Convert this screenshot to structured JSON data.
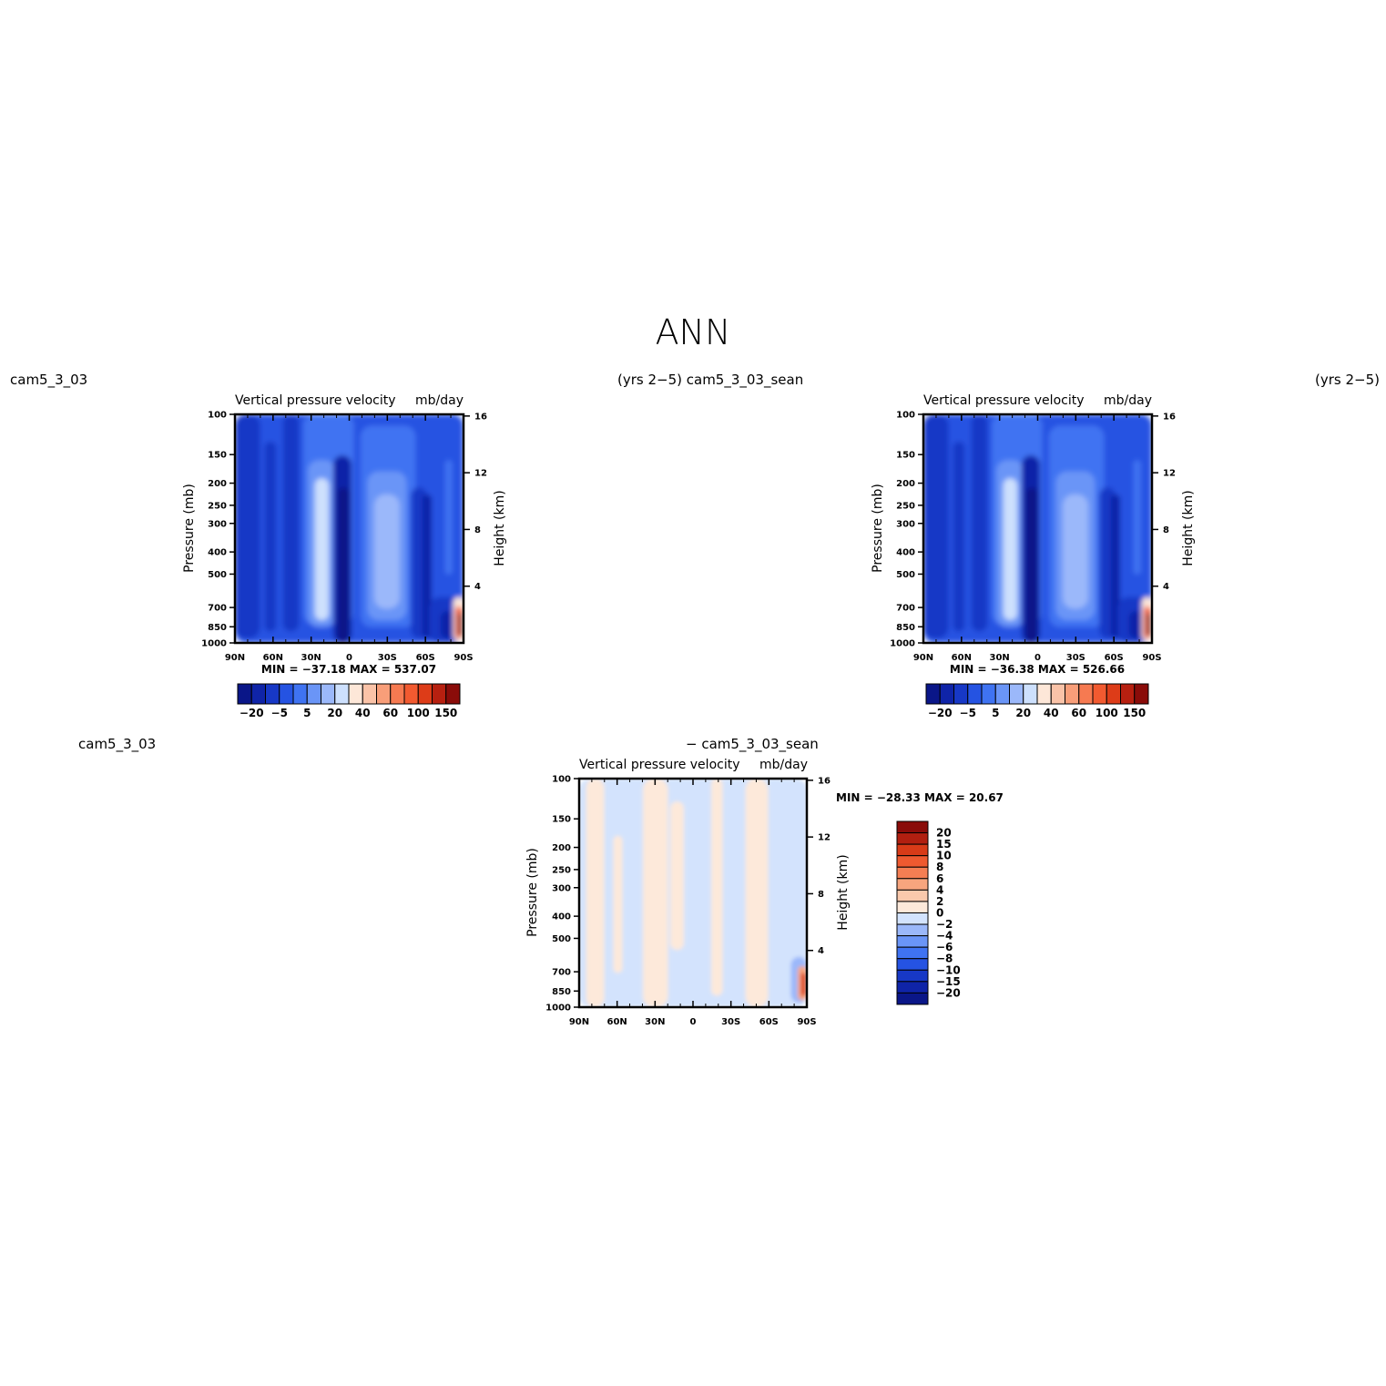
{
  "figure": {
    "title": "ANN",
    "top_labels": {
      "left": "cam5_3_03",
      "mid": "(yrs 2−5) cam5_3_03_sean",
      "right": "(yrs 2−5)"
    },
    "bottom_labels": {
      "left": "cam5_3_03",
      "right": "− cam5_3_03_sean"
    }
  },
  "palettes": {
    "main": [
      "#0a1688",
      "#0f24a8",
      "#1738c6",
      "#2553e2",
      "#3f73f2",
      "#6a95f7",
      "#9bb8fa",
      "#cde0fd",
      "#fde7d8",
      "#fac3a8",
      "#f89e79",
      "#f67a51",
      "#f25a30",
      "#dd3c18",
      "#b72010",
      "#8a0c09"
    ],
    "diff": [
      "#0a1688",
      "#0f24a8",
      "#1738c6",
      "#2553e2",
      "#3f73f2",
      "#6a95f7",
      "#9bb8fa",
      "#d3e3fd",
      "#fde9da",
      "#fac9ac",
      "#f7a57e",
      "#f47e53",
      "#ee5a30",
      "#d83b18",
      "#b11f10",
      "#8a0c09"
    ]
  },
  "chart_data": [
    {
      "type": "heatmap",
      "panel": "model",
      "title_left": "Vertical pressure velocity",
      "title_right": "mb/day",
      "ylabel": "Pressure (mb)",
      "ylabel_right": "Height (km)",
      "x_ticks": [
        "90N",
        "60N",
        "30N",
        "0",
        "30S",
        "60S",
        "90S"
      ],
      "x_values": [
        90,
        60,
        30,
        0,
        -30,
        -60,
        -90
      ],
      "xlim": [
        90,
        -90
      ],
      "y_ticks": [
        100,
        150,
        200,
        250,
        300,
        400,
        500,
        700,
        850,
        1000
      ],
      "ylim": [
        1000,
        100
      ],
      "y_scale": "log",
      "height_ticks": [
        4,
        8,
        12,
        16
      ],
      "stats": {
        "min": "-37.18",
        "max": "537.07",
        "text": "MIN = −37.18   MAX = 537.07"
      },
      "colorbar": {
        "orientation": "horizontal",
        "labels": [
          "−20",
          "−5",
          "5",
          "20",
          "40",
          "60",
          "100",
          "150"
        ],
        "levels": [
          -30,
          -20,
          -15,
          -10,
          -5,
          0,
          5,
          10,
          20,
          30,
          40,
          50,
          60,
          80,
          100,
          150
        ]
      }
    },
    {
      "type": "heatmap",
      "panel": "control",
      "title_left": "Vertical pressure velocity",
      "title_right": "mb/day",
      "ylabel": "Pressure (mb)",
      "ylabel_right": "Height (km)",
      "x_ticks": [
        "90N",
        "60N",
        "30N",
        "0",
        "30S",
        "60S",
        "90S"
      ],
      "x_values": [
        90,
        60,
        30,
        0,
        -30,
        -60,
        -90
      ],
      "xlim": [
        90,
        -90
      ],
      "y_ticks": [
        100,
        150,
        200,
        250,
        300,
        400,
        500,
        700,
        850,
        1000
      ],
      "ylim": [
        1000,
        100
      ],
      "y_scale": "log",
      "height_ticks": [
        4,
        8,
        12,
        16
      ],
      "stats": {
        "min": "-36.38",
        "max": "526.66",
        "text": "MIN = −36.38   MAX = 526.66"
      },
      "colorbar": {
        "orientation": "horizontal",
        "labels": [
          "−20",
          "−5",
          "5",
          "20",
          "40",
          "60",
          "100",
          "150"
        ],
        "levels": [
          -30,
          -20,
          -15,
          -10,
          -5,
          0,
          5,
          10,
          20,
          30,
          40,
          50,
          60,
          80,
          100,
          150
        ]
      }
    },
    {
      "type": "heatmap",
      "panel": "difference",
      "title_left": "Vertical pressure velocity",
      "title_right": "mb/day",
      "ylabel": "Pressure (mb)",
      "ylabel_right": "Height (km)",
      "x_ticks": [
        "90N",
        "60N",
        "30N",
        "0",
        "30S",
        "60S",
        "90S"
      ],
      "x_values": [
        90,
        60,
        30,
        0,
        -30,
        -60,
        -90
      ],
      "xlim": [
        90,
        -90
      ],
      "y_ticks": [
        100,
        150,
        200,
        250,
        300,
        400,
        500,
        700,
        850,
        1000
      ],
      "ylim": [
        1000,
        100
      ],
      "y_scale": "log",
      "height_ticks": [
        4,
        8,
        12,
        16
      ],
      "stats": {
        "min": "-28.33",
        "max": "20.67",
        "text": "MIN = −28.33   MAX =  20.67"
      },
      "colorbar": {
        "orientation": "vertical",
        "labels": [
          "20",
          "15",
          "10",
          "8",
          "6",
          "4",
          "2",
          "0",
          "−2",
          "−4",
          "−6",
          "−8",
          "−10",
          "−15",
          "−20"
        ]
      }
    }
  ]
}
